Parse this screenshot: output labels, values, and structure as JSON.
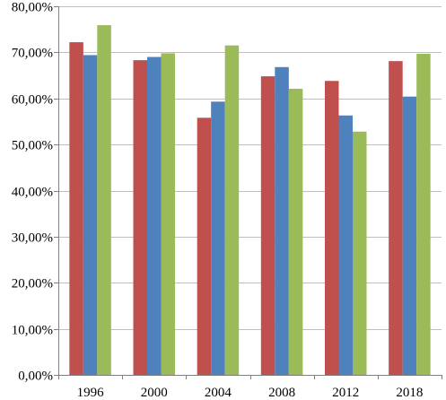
{
  "chart_data": {
    "type": "bar",
    "categories": [
      "1996",
      "2000",
      "2004",
      "2008",
      "2012",
      "2018"
    ],
    "series": [
      {
        "values": [
          72.2,
          68.3,
          55.8,
          64.8,
          63.8,
          68.1
        ],
        "color": "#c0504d"
      },
      {
        "values": [
          69.4,
          69.0,
          59.3,
          66.8,
          56.3,
          60.4
        ],
        "color": "#4f81bd"
      },
      {
        "values": [
          75.9,
          69.8,
          71.5,
          62.1,
          52.8,
          69.7
        ],
        "color": "#9bbb59"
      }
    ],
    "title": "",
    "xlabel": "",
    "ylabel": "",
    "ylim": [
      0,
      80
    ],
    "yticks": [
      0,
      10,
      20,
      30,
      40,
      50,
      60,
      70,
      80
    ],
    "ytick_labels": [
      "0,00%",
      "10,00%",
      "20,00%",
      "30,00%",
      "40,00%",
      "50,00%",
      "60,00%",
      "70,00%",
      "80,00%"
    ],
    "grid": true,
    "legend": "none"
  }
}
